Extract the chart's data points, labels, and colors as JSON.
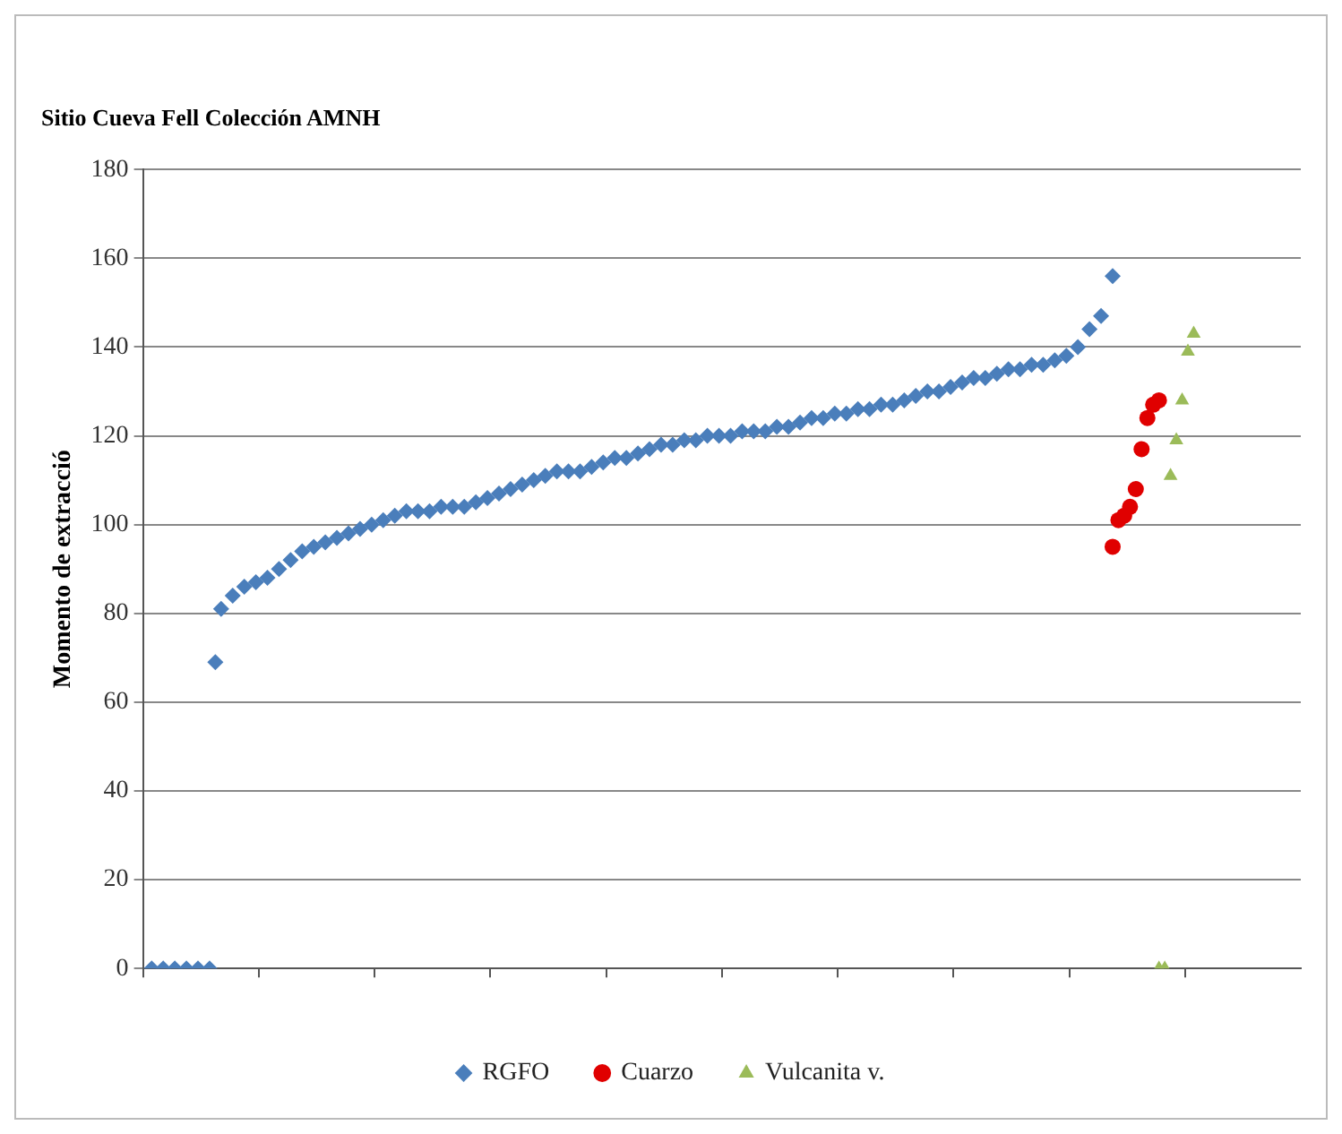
{
  "chart_data": {
    "type": "scatter",
    "title": "Sitio Cueva Fell Colección AMNH",
    "ylabel": "Momento de extracció",
    "categories": [
      null,
      null,
      null,
      null,
      null,
      null,
      null,
      null,
      null,
      null,
      null,
      null,
      null,
      null,
      null,
      null,
      null,
      null,
      null,
      null,
      null,
      null,
      null,
      null,
      null,
      null,
      null,
      null,
      null,
      null,
      null,
      null,
      null,
      null,
      null,
      null,
      null,
      null,
      null,
      null,
      null,
      null,
      null,
      null,
      null,
      null,
      null,
      null,
      null,
      null,
      null,
      null,
      null,
      null,
      null,
      null,
      null,
      null,
      null,
      null,
      null,
      null,
      null,
      null,
      null,
      null,
      null,
      null,
      null,
      null,
      null,
      null,
      null,
      null,
      null,
      null,
      null,
      null,
      null,
      null,
      null,
      null,
      null,
      null,
      null,
      null,
      null,
      null,
      null,
      null,
      null,
      null,
      null,
      null,
      null,
      null,
      null,
      null,
      null,
      null,
      null,
      null,
      null,
      null,
      null,
      null,
      null,
      null,
      null,
      null,
      null,
      null,
      null,
      null,
      null,
      null,
      null,
      null,
      null,
      null,
      null,
      null,
      null,
      null,
      null,
      null,
      null,
      null,
      null,
      null,
      null,
      null,
      null,
      null,
      null,
      null,
      null,
      null,
      null,
      null,
      null,
      null,
      null,
      null,
      null,
      null,
      null,
      null,
      null,
      null,
      null,
      null,
      null,
      null,
      null,
      null,
      null,
      null,
      null,
      null,
      null,
      null,
      null,
      null,
      null,
      null,
      null,
      null,
      null,
      null,
      null,
      null,
      null,
      null,
      null,
      null,
      null,
      null,
      null,
      null,
      null,
      null,
      null,
      null,
      null,
      null,
      null,
      null,
      null,
      null,
      null,
      null,
      null,
      null,
      null,
      null,
      null,
      null,
      null,
      null
    ],
    "ylim": [
      0,
      180
    ],
    "yticks": [
      0,
      20,
      40,
      60,
      80,
      100,
      120,
      140,
      160,
      180
    ],
    "grid": "y",
    "legend": "bottom",
    "series": [
      {
        "name": "RGFO",
        "color": "#4a7ebb",
        "marker": "diamond",
        "values": [
          null,
          0,
          null,
          0,
          null,
          0,
          null,
          0,
          null,
          0,
          null,
          0,
          69,
          81,
          null,
          84,
          null,
          86,
          null,
          87,
          null,
          88,
          null,
          90,
          null,
          92,
          null,
          94,
          null,
          95,
          null,
          96,
          null,
          97,
          null,
          98,
          null,
          99,
          null,
          100,
          null,
          101,
          null,
          102,
          null,
          103,
          null,
          103,
          null,
          103,
          null,
          104,
          null,
          104,
          null,
          104,
          null,
          105,
          null,
          106,
          null,
          107,
          null,
          108,
          null,
          109,
          null,
          110,
          null,
          111,
          null,
          112,
          null,
          112,
          null,
          112,
          null,
          113,
          null,
          114,
          null,
          115,
          null,
          115,
          null,
          116,
          null,
          117,
          null,
          118,
          null,
          118,
          null,
          119,
          null,
          119,
          null,
          120,
          null,
          120,
          null,
          120,
          null,
          121,
          null,
          121,
          null,
          121,
          null,
          122,
          null,
          122,
          null,
          123,
          null,
          124,
          null,
          124,
          null,
          125,
          null,
          125,
          null,
          126,
          null,
          126,
          null,
          127,
          null,
          127,
          null,
          128,
          null,
          129,
          null,
          130,
          null,
          130,
          null,
          131,
          null,
          132,
          null,
          133,
          null,
          133,
          null,
          134,
          null,
          135,
          null,
          135,
          null,
          136,
          null,
          136,
          null,
          137,
          null,
          138,
          null,
          140,
          null,
          144,
          null,
          147,
          null,
          156,
          null,
          null,
          null,
          null,
          null,
          null,
          null,
          null,
          null,
          null,
          null,
          null,
          null,
          null,
          null,
          null,
          null,
          null,
          null,
          null,
          null,
          null,
          null,
          null,
          null,
          null,
          null,
          null,
          null,
          null,
          null,
          null
        ]
      },
      {
        "name": "Cuarzo",
        "color": "#e00000",
        "marker": "circle",
        "values": [
          null,
          null,
          null,
          null,
          null,
          null,
          null,
          null,
          null,
          null,
          null,
          null,
          null,
          null,
          null,
          null,
          null,
          null,
          null,
          null,
          null,
          null,
          null,
          null,
          null,
          null,
          null,
          null,
          null,
          null,
          null,
          null,
          null,
          null,
          null,
          null,
          null,
          null,
          null,
          null,
          null,
          null,
          null,
          null,
          null,
          null,
          null,
          null,
          null,
          null,
          null,
          null,
          null,
          null,
          null,
          null,
          null,
          null,
          null,
          null,
          null,
          null,
          null,
          null,
          null,
          null,
          null,
          null,
          null,
          null,
          null,
          null,
          null,
          null,
          null,
          null,
          null,
          null,
          null,
          null,
          null,
          null,
          null,
          null,
          null,
          null,
          null,
          null,
          null,
          null,
          null,
          null,
          null,
          null,
          null,
          null,
          null,
          null,
          null,
          null,
          null,
          null,
          null,
          null,
          null,
          null,
          null,
          null,
          null,
          null,
          null,
          null,
          null,
          null,
          null,
          null,
          null,
          null,
          null,
          null,
          null,
          null,
          null,
          null,
          null,
          null,
          null,
          null,
          null,
          null,
          null,
          null,
          null,
          null,
          null,
          null,
          null,
          null,
          null,
          null,
          null,
          null,
          null,
          null,
          null,
          null,
          null,
          null,
          null,
          null,
          null,
          null,
          null,
          null,
          null,
          null,
          null,
          null,
          null,
          null,
          null,
          null,
          null,
          null,
          null,
          null,
          null,
          95,
          101,
          102,
          104,
          108,
          117,
          124,
          127,
          128,
          null,
          null,
          null,
          null,
          null,
          null,
          null,
          null,
          null,
          null,
          null,
          null,
          null,
          null,
          null,
          null,
          null,
          null,
          null,
          null,
          null,
          null,
          null,
          null
        ]
      },
      {
        "name": "Vulcanita v.",
        "color": "#9bbb59",
        "marker": "triangle",
        "values": [
          null,
          null,
          null,
          null,
          null,
          null,
          null,
          null,
          null,
          null,
          null,
          null,
          null,
          null,
          null,
          null,
          null,
          null,
          null,
          null,
          null,
          null,
          null,
          null,
          null,
          null,
          null,
          null,
          null,
          null,
          null,
          null,
          null,
          null,
          null,
          null,
          null,
          null,
          null,
          null,
          null,
          null,
          null,
          null,
          null,
          null,
          null,
          null,
          null,
          null,
          null,
          null,
          null,
          null,
          null,
          null,
          null,
          null,
          null,
          null,
          null,
          null,
          null,
          null,
          null,
          null,
          null,
          null,
          null,
          null,
          null,
          null,
          null,
          null,
          null,
          null,
          null,
          null,
          null,
          null,
          null,
          null,
          null,
          null,
          null,
          null,
          null,
          null,
          null,
          null,
          null,
          null,
          null,
          null,
          null,
          null,
          null,
          null,
          null,
          null,
          null,
          null,
          null,
          null,
          null,
          null,
          null,
          null,
          null,
          null,
          null,
          null,
          null,
          null,
          null,
          null,
          null,
          null,
          null,
          null,
          null,
          null,
          null,
          null,
          null,
          null,
          null,
          null,
          null,
          null,
          null,
          null,
          null,
          null,
          null,
          null,
          null,
          null,
          null,
          null,
          null,
          null,
          null,
          null,
          null,
          null,
          null,
          null,
          null,
          null,
          null,
          null,
          null,
          null,
          null,
          null,
          null,
          null,
          null,
          null,
          null,
          null,
          null,
          null,
          null,
          null,
          null,
          null,
          null,
          null,
          null,
          null,
          null,
          null,
          null,
          0,
          0,
          111,
          119,
          128,
          139,
          143,
          null,
          null,
          null,
          null,
          null,
          null,
          null,
          null,
          null,
          null,
          null,
          null,
          null,
          null,
          null,
          null,
          null,
          null
        ]
      }
    ]
  }
}
